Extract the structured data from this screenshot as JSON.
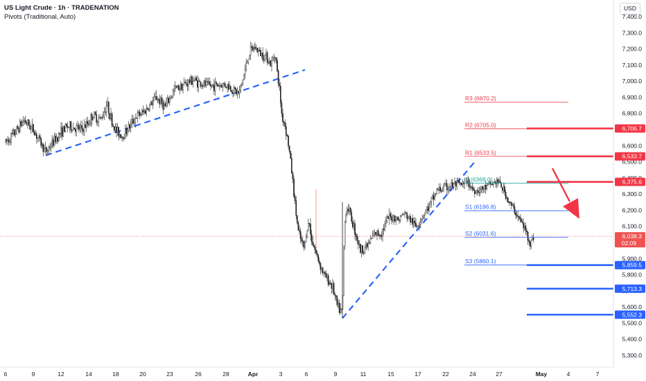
{
  "header": {
    "title": "US Light Crude · 1h · TRADENATION",
    "indicator": "Pivots (Traditional, Auto)",
    "currency_button": "USD"
  },
  "colors": {
    "up": "#26a69a",
    "down": "#ef5350",
    "candle": "#1a1a1a",
    "trend": "#2962ff",
    "resistance": "#f23645",
    "support": "#2962ff",
    "arrow": "#f23645"
  },
  "chart_data": {
    "type": "candlestick",
    "yaxis": {
      "range": [
        5250,
        7470
      ],
      "ticks": [
        5300,
        5400,
        5500,
        5600,
        5700,
        5800,
        5900,
        6000,
        6100,
        6200,
        6300,
        6400,
        6500,
        6600,
        6700,
        6800,
        6900,
        7000,
        7100,
        7200,
        7300,
        7400
      ],
      "tick_labels": [
        "5,300.0",
        "5,400.0",
        "5,500.0",
        "5,600.0",
        "5,700.0",
        "5,800.0",
        "5,900.0",
        "6,000.0",
        "6,100.0",
        "6,200.0",
        "6,300.0",
        "6,400.0",
        "6,500.0",
        "6,600.0",
        "6,700.0",
        "6,800.0",
        "6,900.0",
        "7,000.0",
        "7,100.0",
        "7,200.0",
        "7,300.0",
        "7,400.0"
      ]
    },
    "xaxis": {
      "range_days": [
        6,
        46.8
      ],
      "ticks": [
        {
          "day": 6,
          "label": "6"
        },
        {
          "day": 9,
          "label": "9"
        },
        {
          "day": 12,
          "label": "12"
        },
        {
          "day": 14,
          "label": "14"
        },
        {
          "day": 18,
          "label": "18"
        },
        {
          "day": 20,
          "label": "20"
        },
        {
          "day": 23,
          "label": "23"
        },
        {
          "day": 26,
          "label": "26"
        },
        {
          "day": 28,
          "label": "28"
        },
        {
          "day": 32,
          "label": "Apr"
        },
        {
          "day": 34,
          "label": "3"
        },
        {
          "day": 37,
          "label": "6"
        },
        {
          "day": 40,
          "label": "9"
        },
        {
          "day": 42,
          "label": "11"
        },
        {
          "day": 44,
          "label": "15"
        },
        {
          "day": 46,
          "label": "17"
        },
        {
          "day": 48,
          "label": "22"
        },
        {
          "day": 50,
          "label": "24"
        },
        {
          "day": 52,
          "label": "27"
        },
        {
          "day": 55,
          "label": "May"
        },
        {
          "day": 57,
          "label": "4"
        },
        {
          "day": 59,
          "label": "7"
        }
      ]
    },
    "price_path": [
      {
        "day": 6.0,
        "price": 6620
      },
      {
        "day": 7.0,
        "price": 6680
      },
      {
        "day": 8.0,
        "price": 6760
      },
      {
        "day": 9.0,
        "price": 6700
      },
      {
        "day": 10.3,
        "price": 6560
      },
      {
        "day": 11.5,
        "price": 6650
      },
      {
        "day": 12.5,
        "price": 6720
      },
      {
        "day": 13.5,
        "price": 6700
      },
      {
        "day": 14.5,
        "price": 6790
      },
      {
        "day": 15.5,
        "price": 6760
      },
      {
        "day": 16.5,
        "price": 6860
      },
      {
        "day": 17.5,
        "price": 6730
      },
      {
        "day": 18.5,
        "price": 6660
      },
      {
        "day": 19.5,
        "price": 6780
      },
      {
        "day": 20.5,
        "price": 6830
      },
      {
        "day": 21.5,
        "price": 6900
      },
      {
        "day": 22.5,
        "price": 6840
      },
      {
        "day": 23.5,
        "price": 6950
      },
      {
        "day": 24.5,
        "price": 6980
      },
      {
        "day": 25.5,
        "price": 7010
      },
      {
        "day": 26.5,
        "price": 6970
      },
      {
        "day": 27.2,
        "price": 6980
      },
      {
        "day": 27.8,
        "price": 6920
      },
      {
        "day": 28.3,
        "price": 7180
      },
      {
        "day": 28.8,
        "price": 7210
      },
      {
        "day": 29.4,
        "price": 7170
      },
      {
        "day": 30.0,
        "price": 7150
      },
      {
        "day": 30.4,
        "price": 7100
      },
      {
        "day": 30.8,
        "price": 7180
      },
      {
        "day": 31.0,
        "price": 7050
      },
      {
        "day": 31.4,
        "price": 6950
      },
      {
        "day": 31.8,
        "price": 6800
      },
      {
        "day": 32.3,
        "price": 6720
      },
      {
        "day": 32.7,
        "price": 6600
      },
      {
        "day": 33.1,
        "price": 6430
      },
      {
        "day": 33.5,
        "price": 6220
      },
      {
        "day": 33.9,
        "price": 6050
      },
      {
        "day": 34.4,
        "price": 6000
      },
      {
        "day": 34.9,
        "price": 5960
      },
      {
        "day": 35.3,
        "price": 6090
      },
      {
        "day": 35.8,
        "price": 6120
      },
      {
        "day": 36.3,
        "price": 5940
      },
      {
        "day": 36.8,
        "price": 5800
      },
      {
        "day": 37.3,
        "price": 5730
      },
      {
        "day": 37.6,
        "price": 5600
      },
      {
        "day": 37.9,
        "price": 5560
      },
      {
        "day": 38.1,
        "price": 5920
      },
      {
        "day": 38.5,
        "price": 6200
      },
      {
        "day": 39.0,
        "price": 6220
      },
      {
        "day": 39.5,
        "price": 6090
      },
      {
        "day": 40.0,
        "price": 5950
      },
      {
        "day": 40.5,
        "price": 5980
      },
      {
        "day": 41.0,
        "price": 6050
      },
      {
        "day": 41.5,
        "price": 6060
      },
      {
        "day": 42.0,
        "price": 6150
      },
      {
        "day": 42.5,
        "price": 6160
      },
      {
        "day": 43.0,
        "price": 6140
      },
      {
        "day": 43.5,
        "price": 6180
      },
      {
        "day": 44.0,
        "price": 6150
      },
      {
        "day": 44.5,
        "price": 6100
      },
      {
        "day": 45.0,
        "price": 6170
      },
      {
        "day": 45.5,
        "price": 6230
      },
      {
        "day": 46.0,
        "price": 6320
      },
      {
        "day": 46.5,
        "price": 6360
      },
      {
        "day": 46.8,
        "price": 6350
      }
    ],
    "current_price": {
      "value": 6038.3,
      "label": "6,038.3",
      "countdown": "02:09"
    },
    "pivots": [
      {
        "name": "R3",
        "value": 6870.2,
        "label": "R3 (6870.2)",
        "color": "#f23645"
      },
      {
        "name": "R2",
        "value": 6705.0,
        "label": "R2 (6705.0)",
        "color": "#f23645"
      },
      {
        "name": "R1",
        "value": 6533.5,
        "label": "R1 (6533.5)",
        "color": "#f23645"
      },
      {
        "name": "P",
        "value": 6368.0,
        "label": "P (6368.0)",
        "color": "#26a69a"
      },
      {
        "name": "S1",
        "value": 6196.8,
        "label": "S1 (6196.8)",
        "color": "#2962ff"
      },
      {
        "name": "S2",
        "value": 6031.6,
        "label": "S2 (6031.6)",
        "color": "#2962ff"
      },
      {
        "name": "S3",
        "value": 5860.1,
        "label": "S3 (5860.1)",
        "color": "#2962ff"
      }
    ],
    "levels": [
      {
        "value": 6706.7,
        "label": "6,706.7",
        "kind": "resistance"
      },
      {
        "value": 6533.7,
        "label": "6,533.7",
        "kind": "resistance"
      },
      {
        "value": 6375.6,
        "label": "6,375.6",
        "kind": "resistance"
      },
      {
        "value": 5859.5,
        "label": "5,859.5",
        "kind": "support"
      },
      {
        "value": 5713.3,
        "label": "5,713.3",
        "kind": "support"
      },
      {
        "value": 5552.3,
        "label": "5,552.3",
        "kind": "support"
      }
    ],
    "trendlines": [
      {
        "from": {
          "day": 10.2,
          "price": 6540
        },
        "to": {
          "day": 33.8,
          "price": 7070
        }
      },
      {
        "from": {
          "day": 37.9,
          "price": 5530
        },
        "to": {
          "day": 48.5,
          "price": 6500
        }
      }
    ],
    "arrow": {
      "from": {
        "day": 52.5,
        "price": 6460
      },
      "to": {
        "day": 54.5,
        "price": 6210
      }
    },
    "grid": false,
    "legend": "none"
  }
}
